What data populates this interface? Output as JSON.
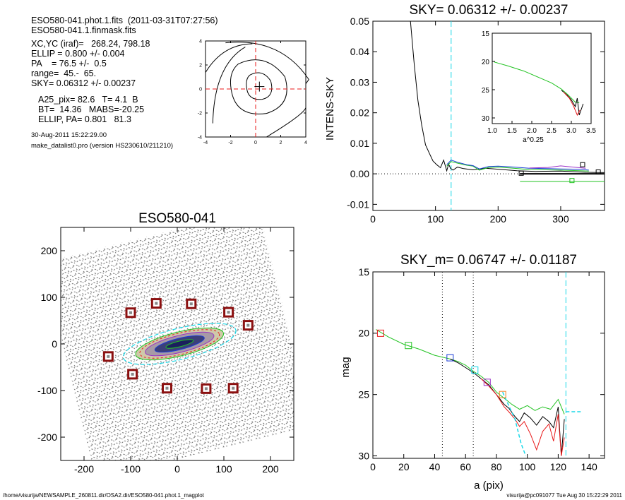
{
  "info": {
    "lines_a": [
      "ESO580-041.phot.1.fits  (2011-03-31T07:27:56)",
      "ESO580-041.1.finmask.fits"
    ],
    "lines_b": [
      "XC,YC (iraf)=   268.24, 798.18",
      "ELLIP = 0.800 +/- 0.004",
      "PA    = 76.5 +/-  0.5",
      "range=  45.-  65.",
      "SKY= 0.06312 +/- 0.00237"
    ],
    "lines_c": [
      "A25_pix= 82.6   T= 4.1  B",
      "BT=  14.36   MABS=-20.25",
      "ELLIP, PA= 0.801   81.3"
    ],
    "date": "30-Aug-2011 15:22:29.00",
    "program": "make_datalist0.pro (version HS230610/211210)"
  },
  "footer": {
    "left": "/home/visurija/NEWSAMPLE_260811.dir/OSA2.dir/ESO580-041.phot.1_magplot",
    "right": "visurija@pc091077  Tue Aug 30 15:22:29 2011"
  },
  "colors": {
    "black": "#000000",
    "red": "#e8191a",
    "green": "#22c322",
    "blue": "#1a3cd6",
    "cyan": "#1ad8e8",
    "purple": "#9b30c8",
    "orange": "#f08020",
    "darkred": "#8b1010"
  },
  "chart_data": [
    {
      "type": "contour",
      "title": "",
      "xlim": [
        -4,
        4
      ],
      "ylim": [
        -4,
        4
      ],
      "xticks": [
        -4,
        -2,
        0,
        2,
        4
      ],
      "yticks": [
        -4,
        -2,
        0,
        2,
        4
      ],
      "center": [
        0.3,
        0.2
      ]
    },
    {
      "type": "line",
      "title": "SKY= 0.06312 +/- 0.00237",
      "xlabel": "",
      "ylabel": "INTENS-SKY",
      "xlim": [
        0,
        370
      ],
      "ylim": [
        -0.012,
        0.05
      ],
      "xticks": [
        0,
        100,
        200,
        300
      ],
      "yticks": [
        -0.01,
        0.0,
        0.01,
        0.02,
        0.03,
        0.04,
        0.05
      ],
      "ytick_labels": [
        "-0.01",
        "0.00",
        "0.01",
        "0.02",
        "0.03",
        "0.04",
        "0.05"
      ],
      "vline_x": 125,
      "series": [
        {
          "color": "black",
          "x": [
            60,
            66,
            72,
            78,
            84,
            90,
            96,
            102,
            108,
            113,
            118,
            121,
            124,
            128,
            135,
            145,
            160,
            180,
            200,
            230,
            260,
            300,
            340,
            370
          ],
          "y": [
            0.05,
            0.036,
            0.024,
            0.016,
            0.0095,
            0.0068,
            0.0042,
            0.003,
            0.002,
            0.0045,
            0.001,
            0.0032,
            0.0018,
            0.0012,
            0.0022,
            0.0017,
            0.0013,
            0.0018,
            0.0015,
            0.001,
            0.0008,
            0.0009,
            0.0005,
            0.0004
          ]
        },
        {
          "color": "green",
          "x": [
            118,
            125,
            135,
            150,
            160,
            170,
            185,
            200,
            220,
            250,
            280,
            300,
            330,
            345
          ],
          "y": [
            0.0025,
            0.004,
            0.0035,
            0.0028,
            0.0025,
            0.0012,
            0.0021,
            0.0022,
            0.0019,
            0.0014,
            0.0013,
            0.0012,
            0.001,
            0.0009
          ]
        },
        {
          "color": "blue",
          "x": [
            118,
            125,
            135,
            150,
            160,
            170,
            185,
            200,
            220,
            250,
            280,
            300,
            330,
            345
          ],
          "y": [
            0.003,
            0.0045,
            0.0038,
            0.003,
            0.0027,
            0.0016,
            0.0024,
            0.0025,
            0.0023,
            0.0018,
            0.0017,
            0.0016,
            0.0015,
            0.0012
          ]
        },
        {
          "color": "purple",
          "x": [
            250,
            280,
            300,
            320,
            340
          ],
          "y": [
            0.0019,
            0.0021,
            0.0026,
            0.0022,
            0.0018
          ]
        }
      ],
      "sky_segments": [
        {
          "color": "black",
          "x": [
            235,
            370
          ],
          "y": 0.0
        },
        {
          "color": "green",
          "x": [
            235,
            370
          ],
          "y": -0.0025
        }
      ],
      "squares": [
        {
          "color": "black",
          "x": 335,
          "y": 0.003
        },
        {
          "color": "black",
          "x": 360,
          "y": 0.0006
        },
        {
          "color": "black",
          "x": 237,
          "y": 0.0002
        },
        {
          "color": "green",
          "x": 318,
          "y": -0.0022
        }
      ],
      "inset": {
        "xlabel": "a^0.25",
        "xlim": [
          1.0,
          3.5
        ],
        "ylim": [
          15,
          31
        ],
        "xticks": [
          1.0,
          1.5,
          2.0,
          2.5,
          3.0,
          3.5
        ],
        "xtick_labels": [
          "1.0",
          "1.5",
          "2.0",
          "2.5",
          "3.0",
          "3.5"
        ],
        "yticks": [
          15,
          20,
          25,
          30
        ],
        "series": [
          {
            "color": "green",
            "x": [
              1.05,
              1.4,
              1.8,
              2.2,
              2.5,
              2.75,
              2.9,
              3.0,
              3.1,
              3.2
            ],
            "y": [
              20.1,
              20.8,
              21.7,
              22.9,
              23.8,
              24.9,
              25.8,
              26.5,
              27.2,
              27.3
            ]
          },
          {
            "color": "black",
            "x": [
              2.75,
              2.9,
              3.0,
              3.1,
              3.15,
              3.2,
              3.3
            ],
            "y": [
              25.1,
              26.0,
              26.8,
              28.0,
              26.5,
              29.5,
              27.5
            ]
          },
          {
            "color": "red",
            "x": [
              2.8,
              2.95,
              3.05,
              3.15,
              3.22
            ],
            "y": [
              25.4,
              26.5,
              27.8,
              29.5,
              28.6
            ]
          }
        ]
      }
    },
    {
      "type": "image",
      "title": "ESO580-041",
      "xlim": [
        -250,
        250
      ],
      "ylim": [
        -250,
        250
      ],
      "xticks": [
        -200,
        -100,
        0,
        100,
        200
      ],
      "yticks": [
        -200,
        -100,
        0,
        100,
        200
      ],
      "galaxy_center": [
        5,
        0
      ],
      "boxes": [
        [
          -100,
          67
        ],
        [
          -45,
          87
        ],
        [
          30,
          86
        ],
        [
          110,
          68
        ],
        [
          152,
          40
        ],
        [
          -148,
          -27
        ],
        [
          -96,
          -65
        ],
        [
          -22,
          -95
        ],
        [
          62,
          -96
        ],
        [
          120,
          -95
        ]
      ]
    },
    {
      "type": "line",
      "title": "SKY_m=  0.06747 +/- 0.01187",
      "xlabel": "a (pix)",
      "ylabel": "mag",
      "xlim": [
        0,
        150
      ],
      "ylim": [
        15,
        30.2
      ],
      "xticks": [
        0,
        20,
        40,
        60,
        80,
        100,
        120,
        140
      ],
      "yticks": [
        15,
        20,
        25,
        30
      ],
      "dotted_vlines": [
        45,
        65
      ],
      "dashed_vline": 125,
      "series": [
        {
          "color": "green",
          "x": [
            2,
            10,
            20,
            30,
            40,
            50,
            55,
            60,
            65,
            70,
            75,
            80,
            85,
            90,
            95,
            100,
            105,
            110,
            115,
            120,
            124
          ],
          "y": [
            19.7,
            20.3,
            20.9,
            21.3,
            21.8,
            22.1,
            22.3,
            22.6,
            23.1,
            23.5,
            24.0,
            24.8,
            25.3,
            25.8,
            26.2,
            25.9,
            26.3,
            26.0,
            26.2,
            25.4,
            26.6
          ]
        },
        {
          "color": "black",
          "x": [
            50,
            55,
            60,
            65,
            70,
            75,
            80,
            85,
            88,
            92,
            95,
            98,
            102,
            106,
            110,
            114,
            117,
            120,
            122,
            124
          ],
          "y": [
            22.1,
            22.4,
            22.8,
            23.2,
            23.7,
            24.2,
            25.0,
            25.8,
            26.1,
            26.8,
            27.2,
            26.5,
            26.9,
            27.5,
            26.8,
            27.2,
            27.7,
            26.0,
            30.0,
            27.0
          ]
        },
        {
          "color": "red",
          "x": [
            70,
            75,
            80,
            85,
            88,
            92,
            95,
            98,
            102,
            106,
            110,
            114,
            117,
            120,
            122,
            124
          ],
          "y": [
            23.7,
            24.3,
            25.0,
            26.0,
            26.4,
            27.0,
            27.6,
            27.2,
            28.2,
            29.5,
            28.0,
            27.4,
            28.8,
            26.6,
            30.0,
            28.5
          ]
        }
      ],
      "dashed_cyan": [
        {
          "x": [
            84,
            88,
            92,
            96,
            99
          ],
          "y": [
            24.8,
            25.9,
            27.0,
            29.0,
            30.0
          ]
        },
        {
          "x": [
            125,
            135
          ],
          "y": [
            26.4,
            26.4
          ]
        }
      ],
      "squares": [
        {
          "color": "red",
          "x": 5,
          "y": 20.0
        },
        {
          "color": "green",
          "x": 23,
          "y": 21.0
        },
        {
          "color": "blue",
          "x": 50,
          "y": 22.0
        },
        {
          "color": "cyan",
          "x": 66,
          "y": 23.0
        },
        {
          "color": "purple",
          "x": 74,
          "y": 24.0
        },
        {
          "color": "orange",
          "x": 84,
          "y": 25.0
        }
      ]
    }
  ]
}
